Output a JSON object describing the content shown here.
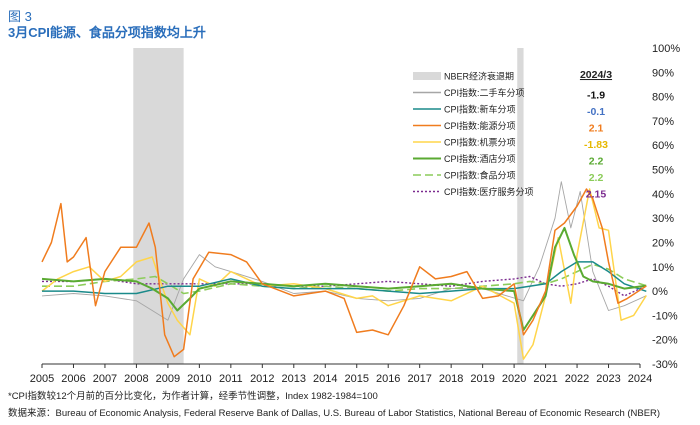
{
  "figure_label": "图 3",
  "footnote": "*CPI指数较12个月前的百分比变化，为作者计算，经季节性调整，Index 1982-1984=100",
  "source": "数据来源：Bureau of Economic Analysis, Federal Reserve Bank of Dallas, U.S. Bureau of Labor Statistics, National Bereau of Economic Research (NBER)",
  "colors": {
    "used_cars": "#a6a6a6",
    "new_cars": "#1a8a8a",
    "energy": "#f07c1e",
    "airfare": "#ffd54a",
    "lodging": "#5aaa32",
    "food": "#8ccc5a",
    "medical": "#7b2b8f",
    "recession": "#d9d9d9"
  },
  "chart_data": {
    "type": "line",
    "title": "3月CPI能源、食品分项指数均上升",
    "xlabel": "",
    "ylabel": "",
    "xlim": [
      2005,
      2024
    ],
    "ylim": [
      -30,
      100
    ],
    "x_ticks": [
      "2005",
      "2006",
      "2007",
      "2008",
      "2009",
      "2010",
      "2011",
      "2012",
      "2013",
      "2014",
      "2015",
      "2016",
      "2017",
      "2018",
      "2019",
      "2020",
      "2021",
      "2022",
      "2023",
      "2024"
    ],
    "y_ticks": [
      "100%",
      "90%",
      "80%",
      "70%",
      "60%",
      "50%",
      "40%",
      "30%",
      "20%",
      "10%",
      "0%",
      "-10%",
      "-20%",
      "-30%"
    ],
    "y_tick_values": [
      100,
      90,
      80,
      70,
      60,
      50,
      40,
      30,
      20,
      10,
      0,
      -10,
      -20,
      -30
    ],
    "legend_header": "2024/3",
    "recessions": [
      [
        2007.9,
        2009.5
      ],
      [
        2020.1,
        2020.3
      ]
    ],
    "series": [
      {
        "key": "recession",
        "name": "NBER经济衰退期",
        "latest": null
      },
      {
        "key": "used_cars",
        "name": "CPI指数:二手车分项",
        "latest": "-1.9",
        "x": [
          2005,
          2006,
          2007,
          2008,
          2008.5,
          2009,
          2009.5,
          2010,
          2010.5,
          2011,
          2012,
          2013,
          2014,
          2015,
          2016,
          2017,
          2018,
          2019,
          2020.3,
          2020.8,
          2021.3,
          2021.5,
          2021.8,
          2022.1,
          2022.5,
          2023,
          2023.5,
          2024.2
        ],
        "values": [
          -2,
          -1,
          -2,
          -4,
          -8,
          -12,
          5,
          15,
          10,
          8,
          4,
          -1,
          0,
          -3,
          -4,
          -3,
          1,
          1,
          -4,
          10,
          30,
          45,
          26,
          41,
          8,
          -8,
          -6,
          -1.9
        ]
      },
      {
        "key": "new_cars",
        "name": "CPI指数:新车分项",
        "latest": "-0.1",
        "x": [
          2005,
          2006,
          2007,
          2008,
          2009,
          2010,
          2011,
          2012,
          2013,
          2014,
          2015,
          2016,
          2017,
          2018,
          2019,
          2020,
          2021,
          2021.5,
          2022,
          2022.5,
          2023,
          2023.5,
          2024.2
        ],
        "values": [
          0,
          0,
          -1,
          -1,
          2,
          2,
          5,
          2,
          1,
          1,
          1,
          0,
          -1,
          0,
          1,
          1,
          3,
          8,
          12,
          12,
          8,
          3,
          -0.1
        ]
      },
      {
        "key": "energy",
        "name": "CPI指数:能源分项",
        "latest": "2.1",
        "x": [
          2005,
          2005.3,
          2005.6,
          2005.8,
          2006,
          2006.4,
          2006.7,
          2007,
          2007.5,
          2008,
          2008.4,
          2008.6,
          2008.9,
          2009.2,
          2009.5,
          2009.8,
          2010.3,
          2011,
          2011.5,
          2012,
          2013,
          2014,
          2014.6,
          2015,
          2015.5,
          2016,
          2016.5,
          2017,
          2017.5,
          2018,
          2018.5,
          2019,
          2019.5,
          2020,
          2020.3,
          2020.6,
          2021,
          2021.3,
          2021.6,
          2022,
          2022.3,
          2022.5,
          2022.8,
          2023,
          2023.3,
          2023.6,
          2024.2
        ],
        "values": [
          12,
          20,
          36,
          12,
          14,
          22,
          -6,
          8,
          18,
          18,
          28,
          18,
          -18,
          -27,
          -24,
          5,
          16,
          15,
          12,
          3,
          -2,
          0,
          -3,
          -17,
          -16,
          -18,
          -6,
          10,
          5,
          6,
          8,
          -3,
          -2,
          3,
          -18,
          -12,
          0,
          25,
          28,
          35,
          42,
          38,
          26,
          12,
          -5,
          -3,
          2.1
        ]
      },
      {
        "key": "airfare",
        "name": "CPI指数:机票分项",
        "latest": "-1.83",
        "x": [
          2005,
          2005.5,
          2006,
          2006.5,
          2007,
          2007.5,
          2008,
          2008.5,
          2009,
          2009.3,
          2009.7,
          2010,
          2010.5,
          2011,
          2012,
          2013,
          2014,
          2015,
          2015.5,
          2016,
          2017,
          2018,
          2019,
          2020,
          2020.3,
          2020.6,
          2021,
          2021.4,
          2021.8,
          2022,
          2022.4,
          2022.7,
          2023,
          2023.4,
          2023.8,
          2024.2
        ],
        "values": [
          0,
          5,
          8,
          10,
          4,
          6,
          12,
          14,
          -5,
          -12,
          -18,
          5,
          2,
          8,
          2,
          3,
          1,
          -3,
          -2,
          -6,
          -2,
          -4,
          2,
          -5,
          -28,
          -22,
          -2,
          22,
          -5,
          15,
          42,
          26,
          25,
          -12,
          -10,
          -1.83
        ]
      },
      {
        "key": "lodging",
        "name": "CPI指数:酒店分项",
        "latest": "2.2",
        "x": [
          2005,
          2006,
          2007,
          2008,
          2008.5,
          2009,
          2009.3,
          2009.7,
          2010,
          2011,
          2012,
          2013,
          2014,
          2015,
          2016,
          2017,
          2018,
          2019,
          2020,
          2020.3,
          2020.6,
          2021,
          2021.3,
          2021.6,
          2021.9,
          2022.2,
          2022.5,
          2023,
          2023.5,
          2024.2
        ],
        "values": [
          5,
          4,
          5,
          4,
          1,
          -3,
          -8,
          -3,
          1,
          4,
          3,
          2,
          3,
          2,
          1,
          2,
          3,
          1,
          0,
          -16,
          -10,
          -2,
          18,
          26,
          15,
          6,
          4,
          3,
          1,
          2.2
        ]
      },
      {
        "key": "food",
        "name": "CPI指数:食品分项",
        "latest": "2.2",
        "x": [
          2005,
          2006,
          2007,
          2008,
          2008.6,
          2009,
          2009.5,
          2010,
          2011,
          2012,
          2013,
          2014,
          2015,
          2016,
          2017,
          2018,
          2019,
          2020,
          2020.5,
          2021,
          2021.5,
          2022,
          2022.5,
          2023,
          2023.5,
          2024.2
        ],
        "values": [
          2,
          2,
          4,
          5,
          6,
          3,
          -1,
          0,
          3,
          2,
          1,
          2,
          1,
          0,
          1,
          1,
          2,
          3,
          4,
          3,
          5,
          8,
          11,
          9,
          5,
          2.2
        ]
      },
      {
        "key": "medical",
        "name": "CPI指数:医疗服务分项",
        "latest": "2.15",
        "x": [
          2005,
          2006,
          2007,
          2008,
          2009,
          2010,
          2011,
          2012,
          2013,
          2014,
          2015,
          2016,
          2017,
          2018,
          2019,
          2020,
          2020.5,
          2021,
          2021.5,
          2022,
          2022.5,
          2023,
          2023.5,
          2024.2
        ],
        "values": [
          4,
          4,
          5,
          3,
          3,
          3,
          3,
          3,
          2,
          2,
          3,
          4,
          3,
          2,
          4,
          5,
          6,
          3,
          2,
          3,
          5,
          2,
          -2,
          2.15
        ]
      }
    ]
  }
}
